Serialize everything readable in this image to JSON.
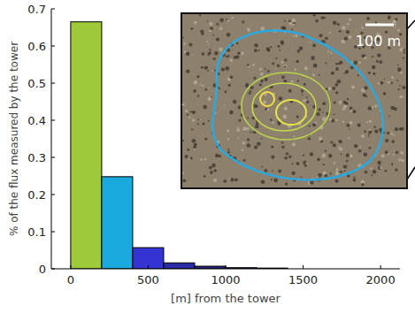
{
  "chart_data": {
    "type": "histogram",
    "xlabel": "[m] from the tower",
    "ylabel": "% of the flux measured by the tower",
    "bins": [
      0,
      200,
      400,
      600,
      800,
      1000,
      1200,
      1400
    ],
    "values": [
      0.665,
      0.248,
      0.057,
      0.016,
      0.007,
      0.003,
      0.002
    ],
    "colors": [
      "#9dc93a",
      "#1aaade",
      "#3434d4",
      "#2a2aa6",
      "#23237e",
      "#1c1c60",
      "#161648"
    ],
    "xlim": [
      -125,
      2125
    ],
    "ylim": [
      0,
      0.7
    ],
    "xticks": [
      0,
      500,
      1000,
      1500,
      2000
    ],
    "yticks": [
      0,
      0.1,
      0.2,
      0.3,
      0.4,
      0.5,
      0.6,
      0.7
    ],
    "annotation": "100 m"
  }
}
